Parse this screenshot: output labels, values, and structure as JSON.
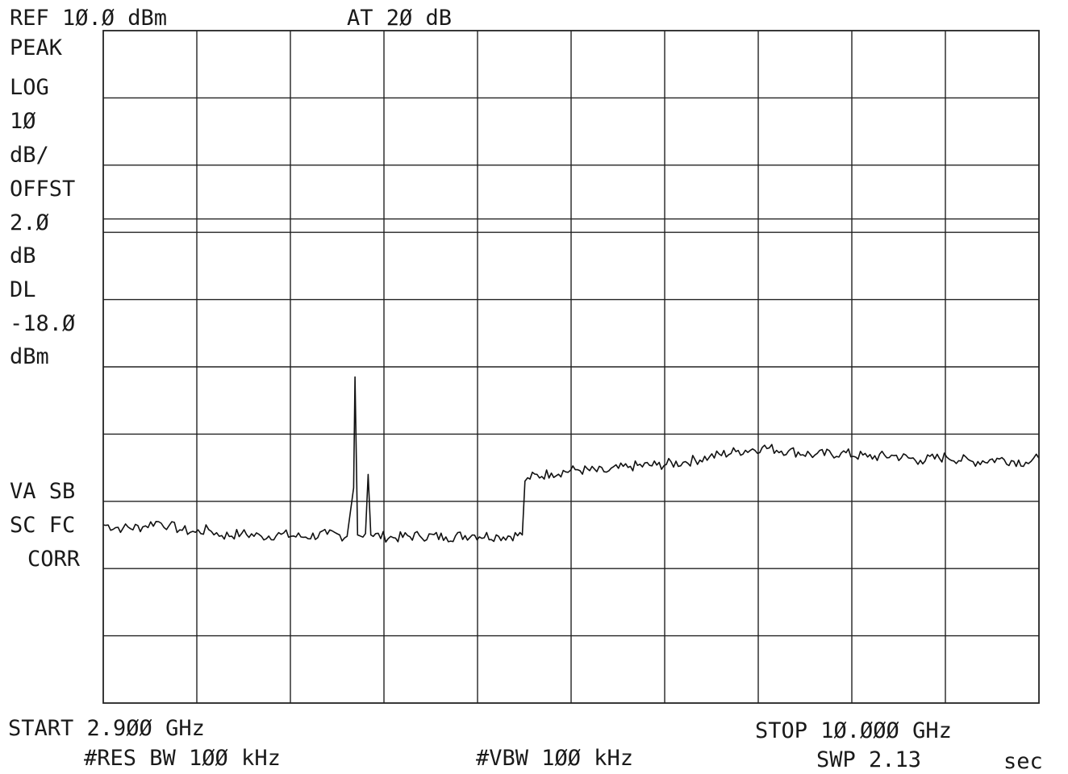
{
  "header": {
    "ref_level": "REF 1Ø.Ø dBm",
    "attenuation": "AT 2Ø dB"
  },
  "left_panel": {
    "detector": "PEAK",
    "scale_mode": "LOG",
    "scale_value": "1Ø",
    "scale_unit": "dB/",
    "offset_label": "OFFST",
    "offset_value": "2.Ø",
    "offset_unit": "dB",
    "display_line_label": "DL",
    "display_line_value": "-18.Ø",
    "display_line_unit": "dBm",
    "status_line1": "VA SB",
    "status_line2": "SC FC",
    "status_line3": "CORR"
  },
  "footer": {
    "start": "START 2.9ØØ GHz",
    "stop": "STOP 1Ø.ØØØ GHz",
    "res_bw": "#RES BW 1ØØ kHz",
    "vbw": "#VBW 1ØØ kHz",
    "sweep_time": "SWP 2.13",
    "sweep_unit": "sec"
  },
  "colors": {
    "trace": "#111111",
    "grid": "#222222",
    "background": "#ffffff"
  },
  "chart_data": {
    "type": "line",
    "xlim": [
      2.9,
      10.0
    ],
    "ylim": [
      -90,
      10
    ],
    "x_divisions": 10,
    "y_divisions": 10,
    "reference_level": 10.0,
    "scale_per_div": 10,
    "display_line": -18.0,
    "grid": true,
    "series": [
      {
        "points": [
          [
            2.9,
            -63.5
          ],
          [
            3.05,
            -64.0
          ],
          [
            3.2,
            -63.8
          ],
          [
            3.3,
            -63.0
          ],
          [
            3.4,
            -63.6
          ],
          [
            3.5,
            -64.3
          ],
          [
            3.6,
            -64.6
          ],
          [
            3.7,
            -64.2
          ],
          [
            3.8,
            -65.1
          ],
          [
            3.95,
            -64.8
          ],
          [
            4.1,
            -65.2
          ],
          [
            4.25,
            -64.9
          ],
          [
            4.4,
            -65.3
          ],
          [
            4.6,
            -64.9
          ],
          [
            4.75,
            -65.2
          ],
          [
            4.8,
            -58.0
          ],
          [
            4.81,
            -41.5
          ],
          [
            4.83,
            -65.0
          ],
          [
            4.89,
            -64.8
          ],
          [
            4.91,
            -56.0
          ],
          [
            4.93,
            -65.0
          ],
          [
            5.1,
            -65.4
          ],
          [
            5.3,
            -65.1
          ],
          [
            5.5,
            -65.3
          ],
          [
            5.7,
            -65.0
          ],
          [
            5.9,
            -65.2
          ],
          [
            6.08,
            -65.0
          ],
          [
            6.1,
            -57.0
          ],
          [
            6.12,
            -56.5
          ],
          [
            6.3,
            -55.8
          ],
          [
            6.5,
            -55.3
          ],
          [
            6.7,
            -55.6
          ],
          [
            6.9,
            -54.8
          ],
          [
            7.1,
            -54.6
          ],
          [
            7.3,
            -54.2
          ],
          [
            7.5,
            -53.4
          ],
          [
            7.7,
            -52.6
          ],
          [
            7.9,
            -52.0
          ],
          [
            8.1,
            -52.5
          ],
          [
            8.3,
            -53.1
          ],
          [
            8.5,
            -52.8
          ],
          [
            8.7,
            -53.4
          ],
          [
            8.9,
            -53.2
          ],
          [
            9.1,
            -53.9
          ],
          [
            9.3,
            -53.4
          ],
          [
            9.5,
            -54.1
          ],
          [
            9.7,
            -53.7
          ],
          [
            9.9,
            -54.2
          ],
          [
            10.0,
            -53.6
          ]
        ]
      }
    ]
  }
}
